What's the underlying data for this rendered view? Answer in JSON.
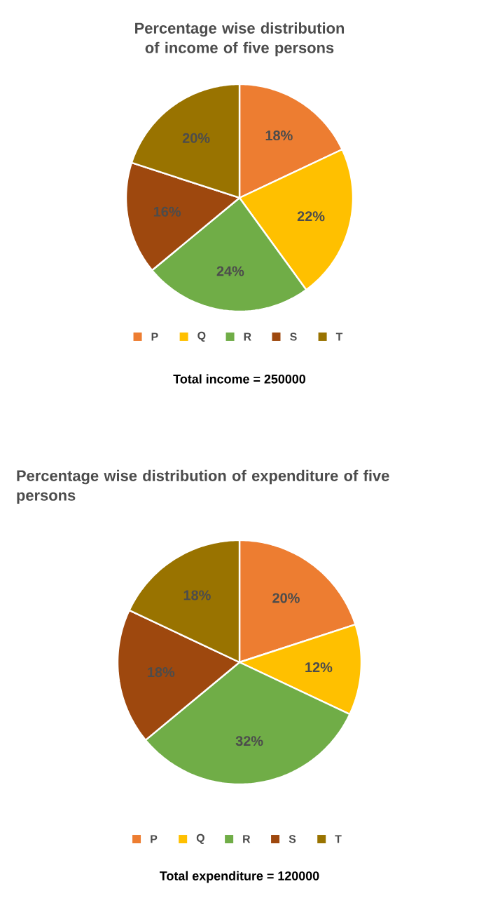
{
  "chart_data": [
    {
      "type": "pie",
      "title": "Percentage wise distribution of income of five persons",
      "categories": [
        "P",
        "Q",
        "R",
        "S",
        "T"
      ],
      "values": [
        18,
        22,
        24,
        16,
        20
      ],
      "colors": [
        "#ed7d31",
        "#ffc000",
        "#70ad47",
        "#9e480e",
        "#997300"
      ],
      "value_labels": [
        "18%",
        "22%",
        "24%",
        "16%",
        "20%"
      ],
      "legend": "bottom",
      "annotations": [
        "Total income = 250000"
      ]
    },
    {
      "type": "pie",
      "title": "Percentage wise distribution of expenditure of five persons",
      "categories": [
        "P",
        "Q",
        "R",
        "S",
        "T"
      ],
      "values": [
        20,
        12,
        32,
        18,
        18
      ],
      "colors": [
        "#ed7d31",
        "#ffc000",
        "#70ad47",
        "#9e480e",
        "#997300"
      ],
      "value_labels": [
        "20%",
        "12%",
        "32%",
        "18%",
        "18%"
      ],
      "legend": "bottom",
      "annotations": [
        "Total expenditure = 120000"
      ]
    }
  ]
}
